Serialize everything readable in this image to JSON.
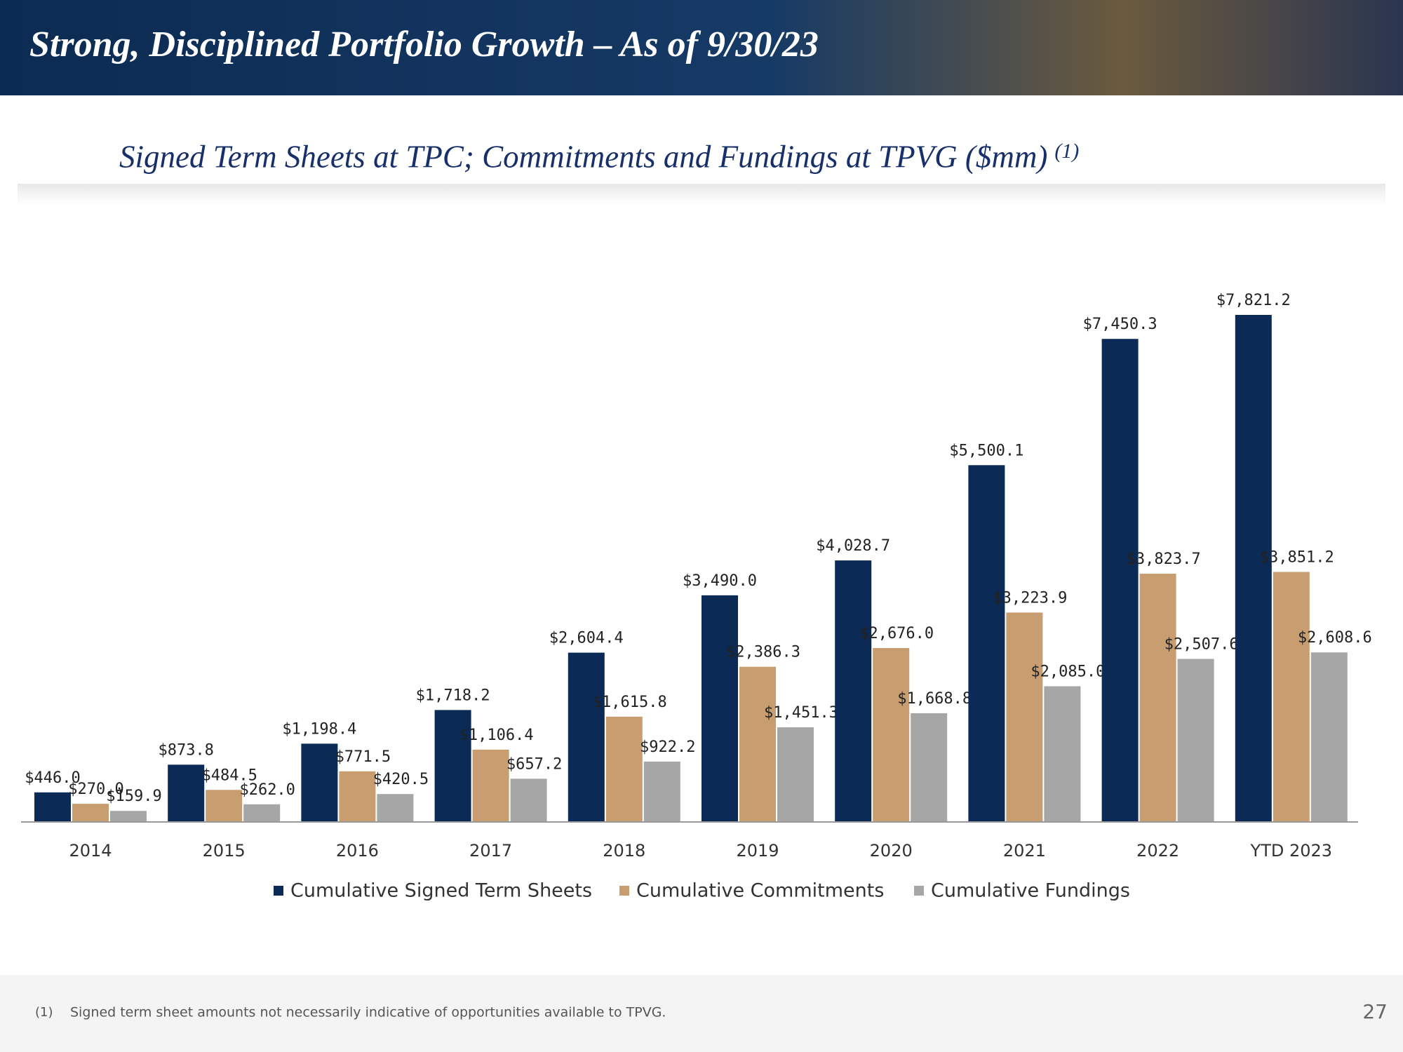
{
  "header": {
    "title": "Strong, Disciplined Portfolio Growth – As of 9/30/23"
  },
  "chart_data": {
    "type": "bar",
    "title": "Signed Term Sheets at TPC; Commitments and Fundings at TPVG ($mm)",
    "title_note": "(1)",
    "categories": [
      "2014",
      "2015",
      "2016",
      "2017",
      "2018",
      "2019",
      "2020",
      "2021",
      "2022",
      "YTD 2023"
    ],
    "series": [
      {
        "name": "Cumulative Signed Term Sheets",
        "color": "#0b2a55",
        "values": [
          446.0,
          873.8,
          1198.4,
          1718.2,
          2604.4,
          3490.0,
          4028.7,
          5500.1,
          7450.3,
          7821.2
        ],
        "value_labels": [
          "$446.0",
          "$873.8",
          "$1,198.4",
          "$1,718.2",
          "$2,604.4",
          "$3,490.0",
          "$4,028.7",
          "$5,500.1",
          "$7,450.3",
          "$7,821.2"
        ]
      },
      {
        "name": "Cumulative Commitments",
        "color": "#c89d6f",
        "values": [
          270.0,
          484.5,
          771.5,
          1106.4,
          1615.8,
          2386.3,
          2676.0,
          3223.9,
          3823.7,
          3851.2
        ],
        "value_labels": [
          "$270.0",
          "$484.5",
          "$771.5",
          "$1,106.4",
          "$1,615.8",
          "$2,386.3",
          "$2,676.0",
          "$3,223.9",
          "$3,823.7",
          "$3,851.2"
        ]
      },
      {
        "name": "Cumulative Fundings",
        "color": "#a6a6a6",
        "values": [
          159.9,
          262.0,
          420.5,
          657.2,
          922.2,
          1451.3,
          1668.8,
          2085.0,
          2507.6,
          2608.6
        ],
        "value_labels": [
          "$159.9",
          "$262.0",
          "$420.5",
          "$657.2",
          "$922.2",
          "$1,451.3",
          "$1,668.8",
          "$2,085.0",
          "$2,507.6",
          "$2,608.6"
        ]
      }
    ]
  },
  "footer": {
    "note_marker": "(1)",
    "note": "Signed term sheet amounts not necessarily indicative of opportunities available to TPVG.",
    "page": "27"
  }
}
